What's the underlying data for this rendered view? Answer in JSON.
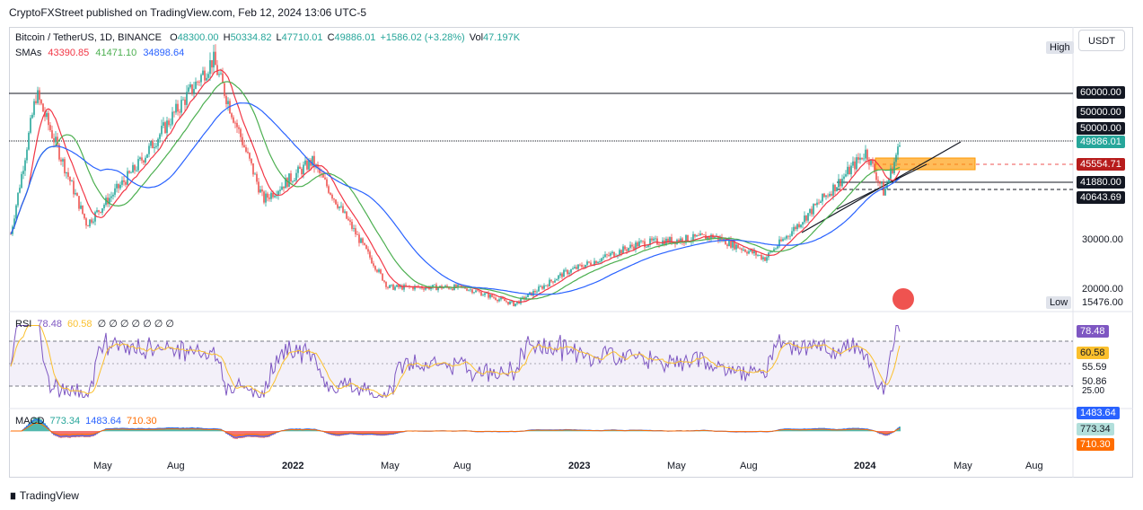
{
  "publisher": "CryptoFXStreet published on TradingView.com, Feb 12, 2024 13:06 UTC-5",
  "legend": {
    "title": "Bitcoin / TetherUS, 1D, BINANCE",
    "O_label": "O",
    "O": "48300.00",
    "H_label": "H",
    "H": "50334.82",
    "L_label": "L",
    "L": "47710.01",
    "C_label": "C",
    "C": "49886.01",
    "change": "+1586.02 (+3.28%)",
    "vol_label": "Vol",
    "vol": "47.197K",
    "sma_label": "SMAs",
    "sma1": "43390.85",
    "sma2": "41471.10",
    "sma3": "34898.64"
  },
  "currency_button": "USDT",
  "price_axis": {
    "high_label": "High",
    "low_label": "Low",
    "low_value": "15476.00",
    "ticks": [
      "50000.00",
      "30000.00",
      "20000.00"
    ],
    "tags": {
      "t60k": "60000.00",
      "t50k": "50000.00",
      "tclose": "49886.01",
      "t45k": "45554.71",
      "t41k": "41880.00",
      "t40k": "40643.69"
    }
  },
  "rsi": {
    "label": "RSI",
    "v1": "78.48",
    "v2": "60.58",
    "zeros": "∅ ∅ ∅ ∅ ∅ ∅ ∅",
    "axis": [
      "78.48",
      "60.58",
      "55.59",
      "50.86",
      "25.00"
    ]
  },
  "macd": {
    "label": "MACD",
    "v1": "773.34",
    "v2": "1483.64",
    "v3": "710.30",
    "axis": [
      "1483.64",
      "773.34",
      "710.30"
    ]
  },
  "time_axis": [
    "May",
    "Aug",
    "2022",
    "May",
    "Aug",
    "2023",
    "May",
    "Aug",
    "2024",
    "May",
    "Aug"
  ],
  "branding": "TradingView",
  "colors": {
    "up": "#26a69a",
    "down": "#ef5350",
    "sma1": "#f23645",
    "sma2": "#4caf50",
    "sma3": "#2962ff",
    "rsi": "#7e57c2",
    "rsi_ma": "#fbc02d",
    "zone": "#ff9800"
  },
  "chart_data": {
    "type": "candlestick",
    "title": "Bitcoin / TetherUS, 1D, BINANCE",
    "ylim": [
      13500,
      71000
    ],
    "horizontal_levels": [
      60000,
      50000,
      45554.71,
      41880,
      40643.69
    ],
    "price_path": [
      {
        "x": "2021-03",
        "y": 31000
      },
      {
        "x": "2021-04",
        "y": 60000
      },
      {
        "x": "2021-06",
        "y": 33000
      },
      {
        "x": "2021-08",
        "y": 45000
      },
      {
        "x": "2021-11",
        "y": 67000
      },
      {
        "x": "2022-01",
        "y": 38000
      },
      {
        "x": "2022-03",
        "y": 46000
      },
      {
        "x": "2022-06",
        "y": 20000
      },
      {
        "x": "2022-09",
        "y": 20000
      },
      {
        "x": "2022-11",
        "y": 16500
      },
      {
        "x": "2023-01",
        "y": 23000
      },
      {
        "x": "2023-04",
        "y": 29000
      },
      {
        "x": "2023-07",
        "y": 30500
      },
      {
        "x": "2023-09",
        "y": 26000
      },
      {
        "x": "2023-12",
        "y": 42000
      },
      {
        "x": "2024-01",
        "y": 48000
      },
      {
        "x": "2024-01-23",
        "y": 39500
      },
      {
        "x": "2024-02-12",
        "y": 49886.01
      }
    ],
    "sma_series": [
      {
        "name": "SMA 43390.85",
        "values": [
          43390.85
        ]
      },
      {
        "name": "SMA 41471.10",
        "values": [
          41471.1
        ]
      },
      {
        "name": "SMA 34898.64",
        "values": [
          34898.64
        ]
      }
    ],
    "rsi_last": 78.48,
    "macd_last": [
      773.34,
      1483.64,
      710.3
    ]
  }
}
